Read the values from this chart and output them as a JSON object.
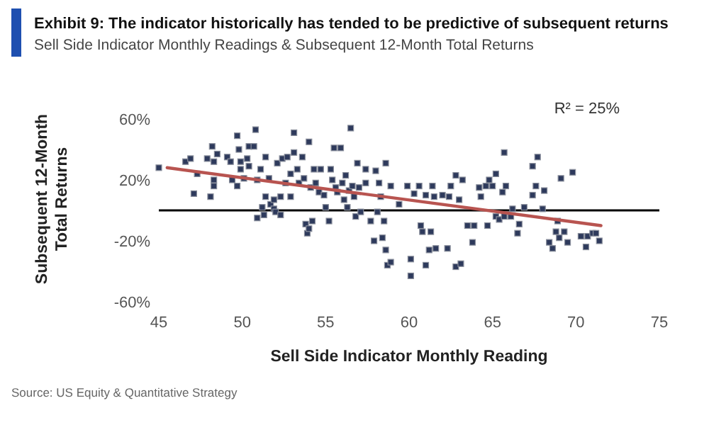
{
  "chart_data": {
    "type": "scatter",
    "title": "Exhibit 9: The indicator historically has tended to be predictive of subsequent returns",
    "subtitle": "Sell Side Indicator Monthly Readings & Subsequent 12-Month Total Returns",
    "xlabel": "Sell Side Indicator Monthly Reading",
    "ylabel": "Subsequent 12-Month Total Returns",
    "annotations": [
      "R² = 25%",
      "Source: US Equity & Quantitative Strategy"
    ],
    "xlim": [
      45,
      75
    ],
    "xticks": [
      45,
      50,
      55,
      60,
      65,
      70,
      75
    ],
    "ylim": [
      -60,
      60
    ],
    "yticks": [
      {
        "value": -60,
        "label": "-60%"
      },
      {
        "value": -20,
        "label": "-20%"
      },
      {
        "value": 20,
        "label": "20%"
      },
      {
        "value": 60,
        "label": "60%"
      }
    ],
    "grid": false,
    "ref_lines": [
      {
        "axis": "y",
        "value": 0,
        "color": "#000000"
      }
    ],
    "series": [
      {
        "marker": "square",
        "color": "#2e3a5c",
        "x": [
          45,
          46.6,
          46.9,
          47.1,
          47.3,
          47.9,
          48.2,
          48.3,
          48.1,
          48.3,
          48.5,
          48.3,
          49.1,
          49.3,
          49.4,
          49.7,
          49.7,
          49.8,
          49.9,
          49.9,
          50.1,
          50.3,
          50.4,
          50.4,
          50.7,
          50.8,
          50.9,
          50.9,
          51.1,
          51.2,
          51.3,
          51.4,
          51.4,
          51.6,
          51.7,
          51.9,
          51.9,
          52,
          52.1,
          52.3,
          52.3,
          52.4,
          52.6,
          52.7,
          52.9,
          52.9,
          53.1,
          53.1,
          53.3,
          53.4,
          53.6,
          53.7,
          53.8,
          53.9,
          54,
          54,
          54.1,
          54.2,
          54.3,
          54.4,
          54.6,
          54.7,
          54.9,
          55,
          55.2,
          55.3,
          55.4,
          55.5,
          55.6,
          55.7,
          55.9,
          56,
          56.1,
          56.2,
          56.3,
          56.4,
          56.5,
          56.6,
          56.7,
          56.8,
          56.9,
          57,
          57.1,
          57.4,
          57.4,
          57.9,
          58,
          58.1,
          58.2,
          58.4,
          58.5,
          58.6,
          58.6,
          58.7,
          58.9,
          58.3,
          57.7,
          58.9,
          59.4,
          59.9,
          60.1,
          60.1,
          60.3,
          60.6,
          60.7,
          60.8,
          61,
          61,
          61.2,
          61.3,
          61.4,
          61.5,
          61.6,
          62,
          62.3,
          62.4,
          62.5,
          62.8,
          62.8,
          63.1,
          63,
          63.2,
          63.5,
          63.8,
          63.9,
          64.2,
          64.3,
          64.6,
          64.7,
          64.8,
          65,
          65.2,
          65.2,
          65.4,
          65.6,
          65.7,
          65.8,
          65.7,
          66.1,
          66.2,
          66.5,
          66.6,
          66.9,
          67.4,
          67.4,
          67.6,
          67.7,
          68,
          68.1,
          68.4,
          68.6,
          68.8,
          68.9,
          69,
          69.1,
          69.3,
          69.5,
          69.8,
          70.3,
          70.6,
          70.7,
          71,
          71.2,
          71.4
        ],
        "values": [
          28,
          32,
          34,
          11,
          24,
          34,
          42,
          32,
          9,
          20,
          37,
          16,
          35,
          32,
          20,
          49,
          16,
          40,
          32,
          27,
          21,
          34,
          29,
          42,
          42,
          53,
          20,
          -5,
          27,
          2,
          -3,
          9,
          35,
          21,
          4,
          1,
          7,
          -1,
          31,
          -3,
          9,
          34,
          18,
          35,
          9,
          24,
          51,
          38,
          27,
          18,
          35,
          21,
          -9,
          -15,
          45,
          -12,
          15,
          -7,
          27,
          18,
          12,
          27,
          10,
          2,
          -7,
          27,
          20,
          41,
          15,
          12,
          41,
          18,
          7,
          23,
          2,
          13,
          54,
          16,
          9,
          -4,
          31,
          15,
          -1,
          27,
          18,
          -20,
          26,
          -1,
          18,
          -18,
          -7,
          -26,
          31,
          -36,
          -34,
          9,
          -7,
          16,
          4,
          16,
          -32,
          -43,
          11,
          16,
          -10,
          -14,
          10,
          -36,
          -26,
          -14,
          16,
          9,
          -25,
          10,
          -25,
          9,
          16,
          23,
          -37,
          -35,
          7,
          20,
          -10,
          -21,
          -10,
          15,
          9,
          16,
          -10,
          20,
          16,
          24,
          -4,
          -6,
          12,
          38,
          16,
          -4,
          -4,
          1,
          -15,
          -9,
          2,
          29,
          10,
          16,
          35,
          1,
          13,
          -21,
          -25,
          -14,
          -7,
          -18,
          21,
          -14,
          -21,
          25,
          -17,
          -24,
          -17,
          -15,
          -15,
          -20
        ]
      },
      {
        "type": "line",
        "color": "#b85450",
        "x": [
          45.5,
          71.5
        ],
        "values": [
          28,
          -10
        ]
      }
    ]
  }
}
